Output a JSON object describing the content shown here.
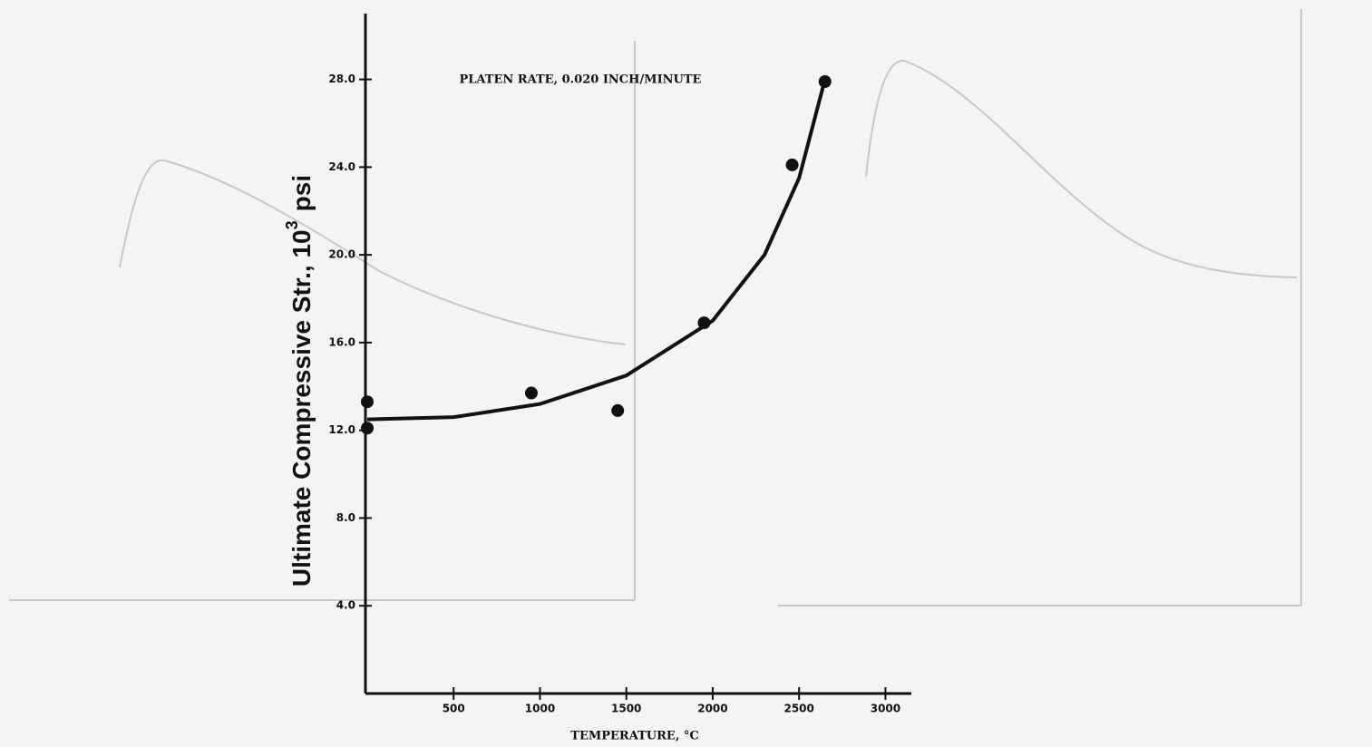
{
  "chart_data": {
    "type": "scatter",
    "title": "PLATEN RATE, 0.020 INCH/MINUTE",
    "x_label": "TEMPERATURE, °C",
    "y_label": "Ultimate Compressive Str., 10",
    "y_label_exponent": "3",
    "y_label_unit": "psi",
    "xlim": [
      0,
      3150
    ],
    "ylim": [
      0,
      31
    ],
    "xticks": [
      500,
      1000,
      1500,
      2000,
      2500,
      3000
    ],
    "yticks": [
      {
        "value": 4,
        "label": "4.0"
      },
      {
        "value": 8,
        "label": "8.0"
      },
      {
        "value": 12,
        "label": "12.0"
      },
      {
        "value": 16,
        "label": "16.0"
      },
      {
        "value": 20,
        "label": "20.0"
      },
      {
        "value": 24,
        "label": "24.0"
      },
      {
        "value": 28,
        "label": "28.0"
      }
    ],
    "series": [
      {
        "color": "#111111",
        "marker": "circle",
        "x": [
          0,
          0,
          950,
          1450,
          1950,
          2460,
          2650
        ],
        "values": [
          13.3,
          12.1,
          13.7,
          12.9,
          16.9,
          24.1,
          27.9
        ]
      },
      {
        "color": "#111111",
        "marker": "line",
        "x": [
          0,
          500,
          1000,
          1500,
          2000,
          2300,
          2500,
          2650
        ],
        "values": [
          12.5,
          12.6,
          13.2,
          14.5,
          17,
          20,
          23.5,
          28
        ]
      }
    ]
  }
}
